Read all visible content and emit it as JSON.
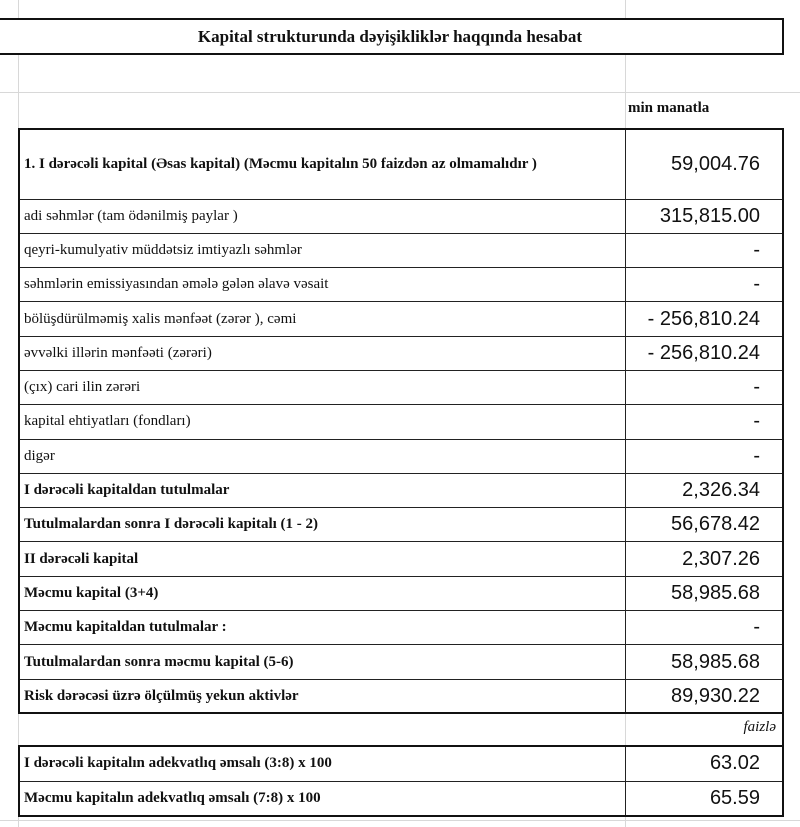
{
  "title": "Kapital strukturunda dəyişikliklər haqqında hesabat",
  "unit_label": "min manatla",
  "rows": [
    {
      "label": "1. I dərəcəli kapital (Əsas kapital) (Məcmu kapitalın 50 faizdən  az olmamalıdır )",
      "value": "59,004.76"
    },
    {
      "label": "adi səhmlər (tam ödənilmiş paylar )",
      "value": "315,815.00"
    },
    {
      "label": "qeyri-kumulyativ müddətsiz imtiyazlı səhmlər",
      "value": "-"
    },
    {
      "label": "səhmlərin emissiyasından əmələ gələn  əlavə vəsait",
      "value": "-"
    },
    {
      "label": "bölüşdürülməmiş xalis mənfəət (zərər ), cəmi",
      "value": "- 256,810.24"
    },
    {
      "label": "əvvəlki illərin mənfəəti (zərəri)",
      "value": "- 256,810.24"
    },
    {
      "label": "(çıx) cari ilin zərəri",
      "value": "-"
    },
    {
      "label": "kapital ehtiyatları (fondları)",
      "value": "-"
    },
    {
      "label": "digər",
      "value": "-"
    },
    {
      "label": "I dərəcəli kapitaldan  tutulmalar",
      "value": "2,326.34"
    },
    {
      "label": "Tutulmalardan  sonra I dərəcəli kapitalı (1 - 2)",
      "value": "56,678.42"
    },
    {
      "label": "II dərəcəli  kapital",
      "value": "2,307.26"
    },
    {
      "label": "Məcmu kapital (3+4)",
      "value": "58,985.68"
    },
    {
      "label": "Məcmu kapitaldan tutulmalar :",
      "value": "-"
    },
    {
      "label": "Tutulmalardan sonra məcmu kapital (5-6)",
      "value": "58,985.68"
    },
    {
      "label": "Risk dərəcəsi üzrə ölçülmüş  yekun aktivlər",
      "value": "89,930.22"
    }
  ],
  "percent_label": "faizlə",
  "ratios": [
    {
      "label": "I dərəcəli  kapitalın  adekvatlıq əmsalı (3:8) x 100",
      "value": "63.02"
    },
    {
      "label": "Məcmu kapitalın  adekvatlıq  əmsalı (7:8) x 100",
      "value": "65.59"
    }
  ]
}
